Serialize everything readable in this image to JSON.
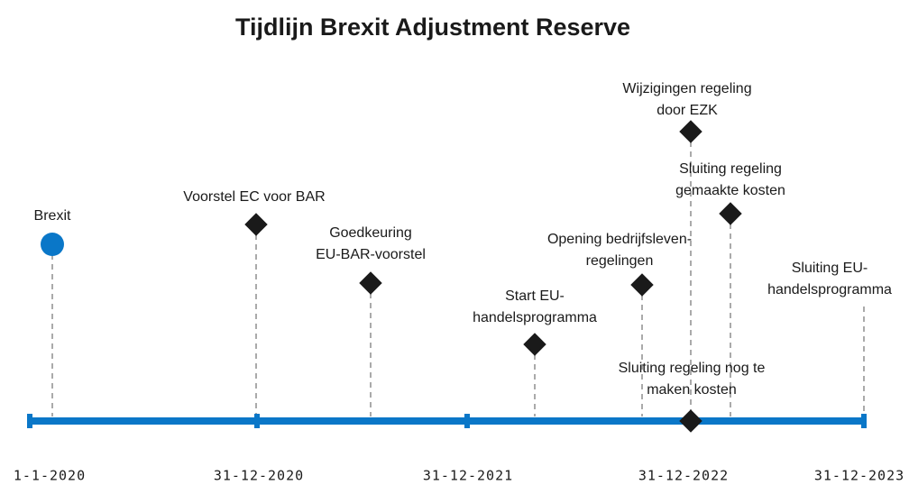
{
  "title": "Tijdlijn Brexit Adjustment Reserve",
  "axis_labels": [
    "1-1-2020",
    "31-12-2020",
    "31-12-2021",
    "31-12-2022",
    "31-12-2023"
  ],
  "events": [
    {
      "lines": [
        "Brexit"
      ]
    },
    {
      "lines": [
        "Voorstel EC voor BAR"
      ]
    },
    {
      "lines": [
        "Goedkeuring",
        "EU-BAR-voorstel"
      ]
    },
    {
      "lines": [
        "Start EU-",
        "handelsprogramma"
      ]
    },
    {
      "lines": [
        "Opening bedrijfsleven-",
        "regelingen"
      ]
    },
    {
      "lines": [
        "Wijzigingen regeling",
        "door EZK"
      ]
    },
    {
      "lines": [
        "Sluiting regeling",
        "gemaakte kosten"
      ]
    },
    {
      "lines": [
        "Sluiting EU-",
        "handelsprogramma"
      ]
    },
    {
      "lines": [
        "Sluiting regeling nog te",
        "maken kosten"
      ]
    }
  ]
}
